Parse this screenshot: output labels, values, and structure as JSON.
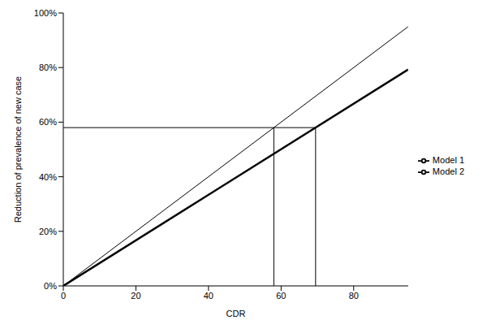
{
  "chart_data": {
    "type": "line",
    "x_label": "CDR",
    "y_label": "Reduction of prevalence of new case",
    "x": [
      0,
      95
    ],
    "series": [
      {
        "name": "Model 1",
        "color": "#000000",
        "values": [
          0,
          79.3
        ]
      },
      {
        "name": "Model 2",
        "color": "#000000",
        "values": [
          0,
          95
        ]
      }
    ],
    "xlim": [
      0,
      95
    ],
    "xticks": [
      0,
      20,
      40,
      60,
      80
    ],
    "ylim": [
      0,
      100
    ],
    "yticks": [
      {
        "value": 0,
        "label": "0%"
      },
      {
        "value": 20,
        "label": "20%"
      },
      {
        "value": 40,
        "label": "40%"
      },
      {
        "value": 60,
        "label": "60%"
      },
      {
        "value": 80,
        "label": "80%"
      },
      {
        "value": 100,
        "label": "100%"
      }
    ],
    "reference_lines": {
      "y": 58,
      "x": [
        58,
        69.5
      ]
    },
    "grid": false,
    "legend": "right"
  }
}
